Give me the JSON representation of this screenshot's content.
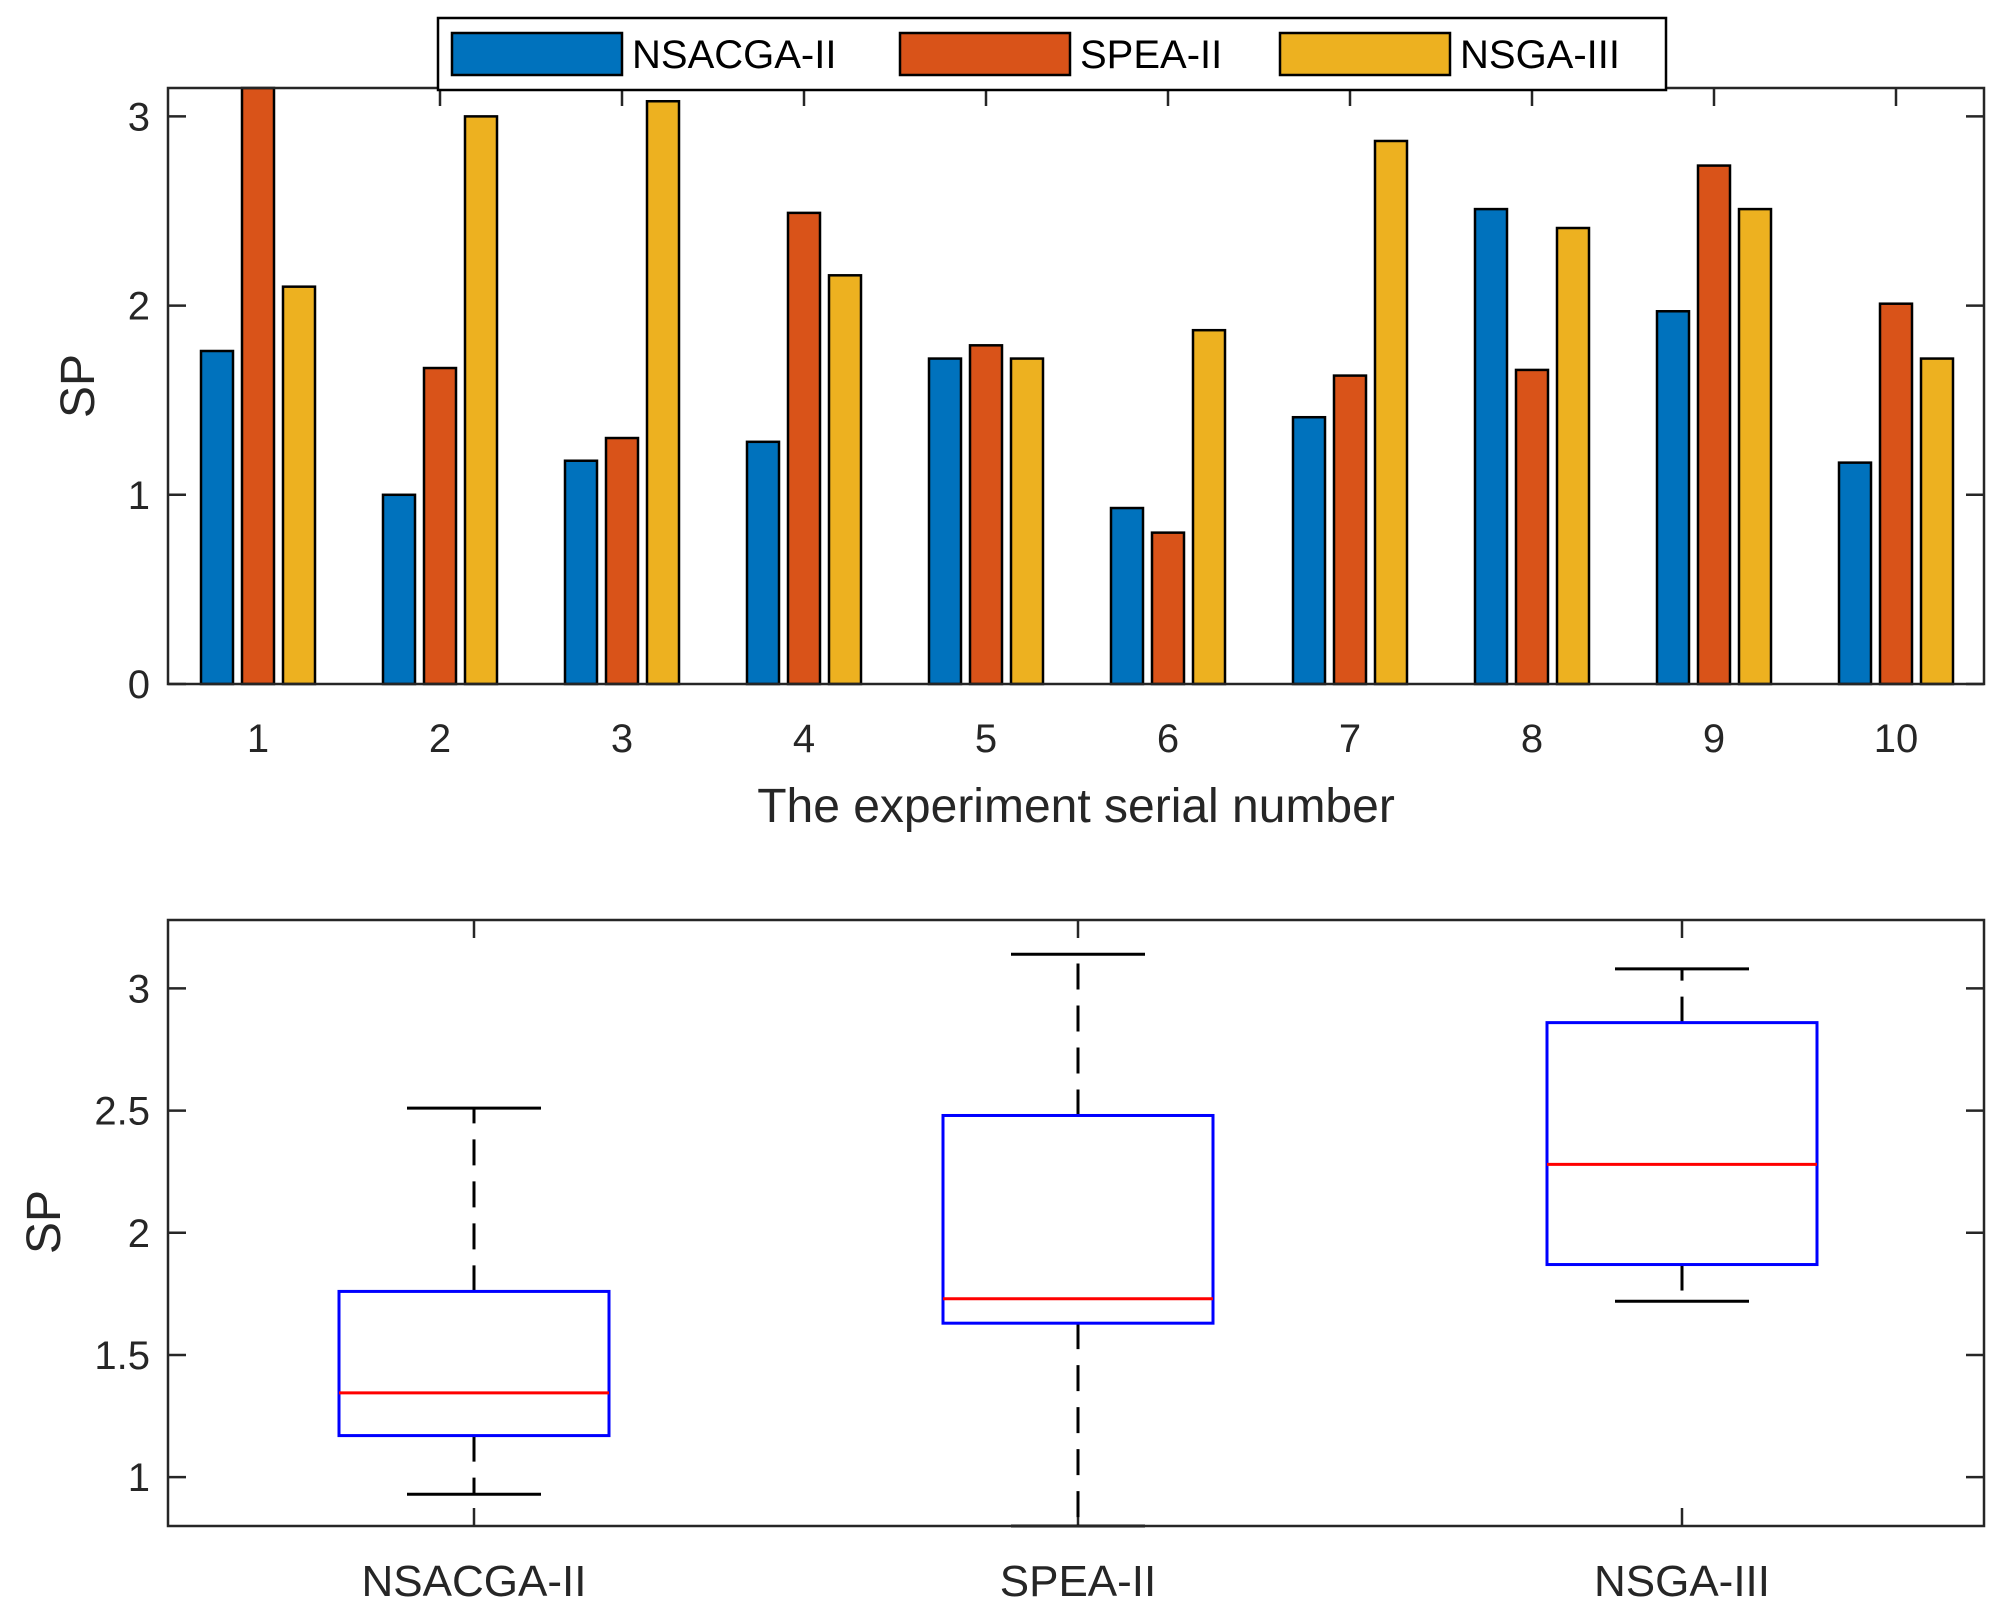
{
  "chart_data": [
    {
      "type": "bar",
      "title": "",
      "xlabel": "The experiment serial number",
      "ylabel": "SP",
      "ylim": [
        0,
        3.15
      ],
      "yticks": [
        "0",
        "1",
        "2",
        "3"
      ],
      "ytick_values": [
        0,
        1,
        2,
        3
      ],
      "categories": [
        "1",
        "2",
        "3",
        "4",
        "5",
        "6",
        "7",
        "8",
        "9",
        "10"
      ],
      "legend_placement": "top-center",
      "series": [
        {
          "name": "NSACGA-II",
          "color": "#0072BD",
          "values": [
            1.76,
            1.0,
            1.18,
            1.28,
            1.72,
            0.93,
            1.41,
            2.51,
            1.97,
            1.17
          ]
        },
        {
          "name": "SPEA-II",
          "color": "#D95319",
          "values": [
            3.15,
            1.67,
            1.3,
            2.49,
            1.79,
            0.8,
            1.63,
            1.66,
            2.74,
            2.01
          ]
        },
        {
          "name": "NSGA-III",
          "color": "#EDB120",
          "values": [
            2.1,
            3.0,
            3.08,
            2.16,
            1.72,
            1.87,
            2.87,
            2.41,
            2.51,
            1.72
          ]
        }
      ]
    },
    {
      "type": "box",
      "title": "",
      "xlabel": "",
      "ylabel": "SP",
      "ylim": [
        0.8,
        3.28
      ],
      "yticks": [
        "1",
        "1.5",
        "2",
        "2.5",
        "3"
      ],
      "ytick_values": [
        1,
        1.5,
        2,
        2.5,
        3
      ],
      "categories": [
        "NSACGA-II",
        "SPEA-II",
        "NSGA-III"
      ],
      "box_color": "#0000FF",
      "median_color": "#FF0000",
      "whisker_color": "#000000",
      "boxes": [
        {
          "name": "NSACGA-II",
          "whisker_low": 0.93,
          "q1": 1.17,
          "median": 1.345,
          "q3": 1.76,
          "whisker_high": 2.51
        },
        {
          "name": "SPEA-II",
          "whisker_low": 0.8,
          "q1": 1.63,
          "median": 1.73,
          "q3": 2.48,
          "whisker_high": 3.14
        },
        {
          "name": "NSGA-III",
          "whisker_low": 1.72,
          "q1": 1.87,
          "median": 2.28,
          "q3": 2.86,
          "whisker_high": 3.08
        }
      ]
    }
  ]
}
